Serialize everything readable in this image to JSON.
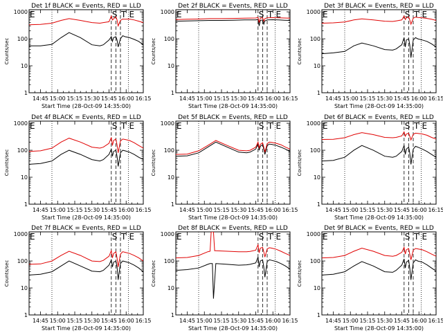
{
  "figure": {
    "xlabel": "Start Time (28-Oct-09 14:35:00)",
    "ylabel": "Counts/sec",
    "xticks": [
      "14:45",
      "15:00",
      "15:15",
      "15:30",
      "15:45",
      "16:00",
      "16:15"
    ],
    "xtick_minutes": [
      10,
      25,
      40,
      55,
      70,
      85,
      100
    ],
    "yticks": [
      {
        "value": 1,
        "label": "1"
      },
      {
        "value": 10,
        "label": "10"
      },
      {
        "value": 100,
        "label": "100"
      },
      {
        "value": 1000,
        "label": "1000"
      }
    ],
    "xlim_minutes": [
      0,
      100
    ],
    "ylim": [
      1,
      1200
    ],
    "ylog": true,
    "series_colors": {
      "events": "#000000",
      "lld": "#e00000"
    },
    "markers": [
      {
        "label": "E",
        "minute": 0,
        "style": "none"
      },
      {
        "label": "",
        "minute": 20,
        "style": "dotted"
      },
      {
        "label": "S",
        "minute": 72,
        "style": "dashed"
      },
      {
        "label": "",
        "minute": 76,
        "style": "dashed"
      },
      {
        "label": "T",
        "minute": 80,
        "style": "dashed"
      },
      {
        "label": "E",
        "minute": 87,
        "style": "dotted"
      }
    ]
  },
  "chart_data": [
    {
      "type": "line",
      "title": "Det 1f  BLACK = Events, RED = LLD",
      "series": [
        {
          "name": "Events",
          "kind": "events",
          "x": [
            0,
            10,
            20,
            28,
            35,
            45,
            55,
            62,
            65,
            70,
            72,
            73,
            74,
            76,
            77,
            78,
            80,
            82,
            84,
            88,
            92,
            96,
            100
          ],
          "y": [
            55,
            55,
            62,
            110,
            170,
            110,
            60,
            55,
            60,
            90,
            120,
            80,
            110,
            120,
            90,
            50,
            100,
            130,
            120,
            110,
            95,
            80,
            60
          ]
        },
        {
          "name": "LLD",
          "kind": "lld",
          "x": [
            0,
            10,
            20,
            28,
            35,
            45,
            55,
            62,
            65,
            70,
            72,
            73,
            74,
            76,
            77,
            78,
            80,
            82,
            84,
            88,
            92,
            96,
            100
          ],
          "y": [
            330,
            340,
            380,
            480,
            560,
            480,
            400,
            380,
            400,
            430,
            700,
            500,
            550,
            650,
            500,
            300,
            480,
            540,
            530,
            540,
            500,
            450,
            400
          ]
        }
      ]
    },
    {
      "type": "line",
      "title": "Det 2f  BLACK = Events, RED = LLD",
      "series": [
        {
          "name": "Events",
          "kind": "events",
          "x": [
            0,
            10,
            20,
            30,
            40,
            50,
            60,
            70,
            72,
            73,
            74,
            76,
            77,
            78,
            80,
            85,
            90,
            95,
            100
          ],
          "y": [
            450,
            460,
            470,
            480,
            480,
            490,
            500,
            500,
            520,
            300,
            480,
            500,
            350,
            460,
            500,
            510,
            500,
            490,
            480
          ]
        },
        {
          "name": "LLD",
          "kind": "lld",
          "x": [
            0,
            10,
            20,
            30,
            40,
            50,
            60,
            70,
            72,
            73,
            74,
            76,
            77,
            78,
            80,
            85,
            90,
            95,
            100
          ],
          "y": [
            520,
            530,
            540,
            560,
            560,
            570,
            580,
            590,
            620,
            400,
            580,
            600,
            450,
            560,
            600,
            610,
            600,
            590,
            580
          ]
        }
      ]
    },
    {
      "type": "line",
      "title": "Det 3f  BLACK = Events, RED = LLD",
      "series": [
        {
          "name": "Events",
          "kind": "events",
          "x": [
            0,
            10,
            20,
            28,
            35,
            45,
            55,
            62,
            65,
            70,
            72,
            73,
            74,
            76,
            77,
            78,
            80,
            82,
            84,
            88,
            92,
            96,
            100
          ],
          "y": [
            28,
            30,
            34,
            55,
            70,
            55,
            40,
            38,
            42,
            60,
            110,
            50,
            90,
            100,
            60,
            20,
            90,
            110,
            100,
            90,
            80,
            65,
            50
          ]
        },
        {
          "name": "LLD",
          "kind": "lld",
          "x": [
            0,
            10,
            20,
            28,
            35,
            45,
            55,
            62,
            65,
            70,
            72,
            73,
            74,
            76,
            77,
            78,
            80,
            82,
            84,
            88,
            92,
            96,
            100
          ],
          "y": [
            380,
            390,
            420,
            500,
            550,
            500,
            450,
            440,
            460,
            500,
            700,
            520,
            600,
            650,
            500,
            350,
            580,
            640,
            620,
            600,
            570,
            530,
            480
          ]
        }
      ]
    },
    {
      "type": "line",
      "title": "Det 4f  BLACK = Events, RED = LLD",
      "series": [
        {
          "name": "Events",
          "kind": "events",
          "x": [
            0,
            10,
            20,
            28,
            35,
            45,
            55,
            62,
            65,
            70,
            72,
            73,
            74,
            76,
            77,
            78,
            80,
            82,
            84,
            88,
            92,
            96,
            100
          ],
          "y": [
            30,
            32,
            40,
            70,
            100,
            70,
            45,
            40,
            45,
            70,
            110,
            60,
            90,
            100,
            60,
            25,
            80,
            100,
            95,
            85,
            70,
            55,
            45
          ]
        },
        {
          "name": "LLD",
          "kind": "lld",
          "x": [
            0,
            10,
            20,
            28,
            35,
            45,
            55,
            62,
            65,
            70,
            72,
            73,
            74,
            76,
            77,
            78,
            80,
            82,
            84,
            88,
            92,
            96,
            100
          ],
          "y": [
            90,
            95,
            120,
            200,
            280,
            200,
            130,
            120,
            130,
            180,
            300,
            150,
            230,
            260,
            160,
            80,
            220,
            260,
            250,
            230,
            190,
            150,
            120
          ]
        }
      ]
    },
    {
      "type": "line",
      "title": "Det 5f  BLACK = Events, RED = LLD",
      "series": [
        {
          "name": "Events",
          "kind": "events",
          "x": [
            0,
            10,
            20,
            28,
            35,
            45,
            55,
            62,
            65,
            70,
            72,
            73,
            74,
            76,
            77,
            78,
            80,
            82,
            84,
            88,
            92,
            96,
            100
          ],
          "y": [
            60,
            62,
            80,
            130,
            200,
            130,
            85,
            80,
            85,
            110,
            170,
            100,
            140,
            160,
            110,
            70,
            150,
            170,
            165,
            150,
            130,
            110,
            90
          ]
        },
        {
          "name": "LLD",
          "kind": "lld",
          "x": [
            0,
            10,
            20,
            28,
            35,
            45,
            55,
            62,
            65,
            70,
            72,
            73,
            74,
            76,
            77,
            78,
            80,
            82,
            84,
            88,
            92,
            96,
            100
          ],
          "y": [
            70,
            72,
            95,
            150,
            230,
            150,
            100,
            95,
            100,
            130,
            200,
            120,
            165,
            190,
            130,
            85,
            175,
            200,
            195,
            180,
            160,
            130,
            110
          ]
        }
      ]
    },
    {
      "type": "line",
      "title": "Det 6f  BLACK = Events, RED = LLD",
      "series": [
        {
          "name": "Events",
          "kind": "events",
          "x": [
            0,
            10,
            20,
            28,
            35,
            45,
            55,
            62,
            65,
            70,
            72,
            73,
            74,
            76,
            77,
            78,
            80,
            82,
            84,
            88,
            92,
            96,
            100
          ],
          "y": [
            40,
            42,
            55,
            100,
            150,
            100,
            60,
            55,
            60,
            90,
            150,
            70,
            110,
            130,
            80,
            30,
            110,
            140,
            130,
            110,
            90,
            70,
            55
          ]
        },
        {
          "name": "LLD",
          "kind": "lld",
          "x": [
            0,
            10,
            20,
            28,
            35,
            45,
            55,
            62,
            65,
            70,
            72,
            73,
            74,
            76,
            77,
            78,
            80,
            82,
            84,
            88,
            92,
            96,
            100
          ],
          "y": [
            250,
            255,
            290,
            380,
            450,
            380,
            300,
            290,
            300,
            340,
            480,
            330,
            400,
            430,
            330,
            240,
            390,
            430,
            420,
            400,
            360,
            300,
            260
          ]
        }
      ]
    },
    {
      "type": "line",
      "title": "Det 7f  BLACK = Events, RED = LLD",
      "series": [
        {
          "name": "Events",
          "kind": "events",
          "x": [
            0,
            10,
            20,
            28,
            35,
            45,
            55,
            62,
            65,
            70,
            72,
            73,
            74,
            76,
            77,
            78,
            80,
            82,
            84,
            88,
            92,
            96,
            100
          ],
          "y": [
            30,
            32,
            40,
            65,
            100,
            65,
            42,
            40,
            45,
            70,
            110,
            60,
            90,
            100,
            60,
            20,
            80,
            100,
            95,
            85,
            70,
            55,
            40
          ]
        },
        {
          "name": "LLD",
          "kind": "lld",
          "x": [
            0,
            10,
            20,
            28,
            35,
            45,
            55,
            62,
            65,
            70,
            72,
            73,
            74,
            76,
            77,
            78,
            80,
            82,
            84,
            88,
            92,
            96,
            100
          ],
          "y": [
            75,
            78,
            100,
            160,
            230,
            160,
            100,
            95,
            105,
            150,
            240,
            130,
            190,
            220,
            130,
            60,
            180,
            220,
            210,
            190,
            160,
            130,
            100
          ]
        }
      ]
    },
    {
      "type": "line",
      "title": "Det 8f  BLACK = Events, RED = LLD",
      "series": [
        {
          "name": "Events",
          "kind": "events",
          "x": [
            0,
            10,
            20,
            28,
            30,
            32,
            33,
            35,
            45,
            55,
            62,
            65,
            70,
            72,
            73,
            74,
            76,
            77,
            78,
            80,
            82,
            84,
            88,
            92,
            96,
            100
          ],
          "y": [
            45,
            48,
            55,
            75,
            80,
            80,
            4,
            80,
            75,
            70,
            72,
            75,
            85,
            140,
            60,
            100,
            110,
            60,
            25,
            95,
            110,
            105,
            95,
            80,
            65,
            50
          ]
        },
        {
          "name": "LLD",
          "kind": "lld",
          "x": [
            0,
            10,
            20,
            28,
            30,
            31,
            33,
            34,
            35,
            45,
            55,
            62,
            65,
            70,
            72,
            73,
            74,
            76,
            77,
            78,
            80,
            82,
            84,
            88,
            92,
            96,
            100
          ],
          "y": [
            130,
            135,
            160,
            220,
            230,
            1200,
            1200,
            240,
            240,
            230,
            220,
            220,
            225,
            250,
            400,
            200,
            300,
            320,
            220,
            140,
            280,
            310,
            300,
            270,
            230,
            190,
            160
          ]
        }
      ]
    },
    {
      "type": "line",
      "title": "Det 9f  BLACK = Events, RED = LLD",
      "series": [
        {
          "name": "Events",
          "kind": "events",
          "x": [
            0,
            10,
            20,
            28,
            35,
            45,
            55,
            62,
            65,
            70,
            72,
            73,
            74,
            76,
            77,
            78,
            80,
            82,
            84,
            88,
            92,
            96,
            100
          ],
          "y": [
            30,
            32,
            40,
            65,
            95,
            65,
            40,
            38,
            45,
            70,
            120,
            55,
            90,
            105,
            55,
            20,
            85,
            110,
            100,
            90,
            72,
            55,
            42
          ]
        },
        {
          "name": "LLD",
          "kind": "lld",
          "x": [
            0,
            10,
            20,
            28,
            35,
            45,
            55,
            62,
            65,
            70,
            72,
            73,
            74,
            76,
            77,
            78,
            80,
            82,
            84,
            88,
            92,
            96,
            100
          ],
          "y": [
            130,
            135,
            160,
            230,
            300,
            230,
            160,
            150,
            160,
            210,
            320,
            180,
            260,
            290,
            180,
            110,
            250,
            290,
            280,
            260,
            220,
            180,
            150
          ]
        }
      ]
    }
  ]
}
